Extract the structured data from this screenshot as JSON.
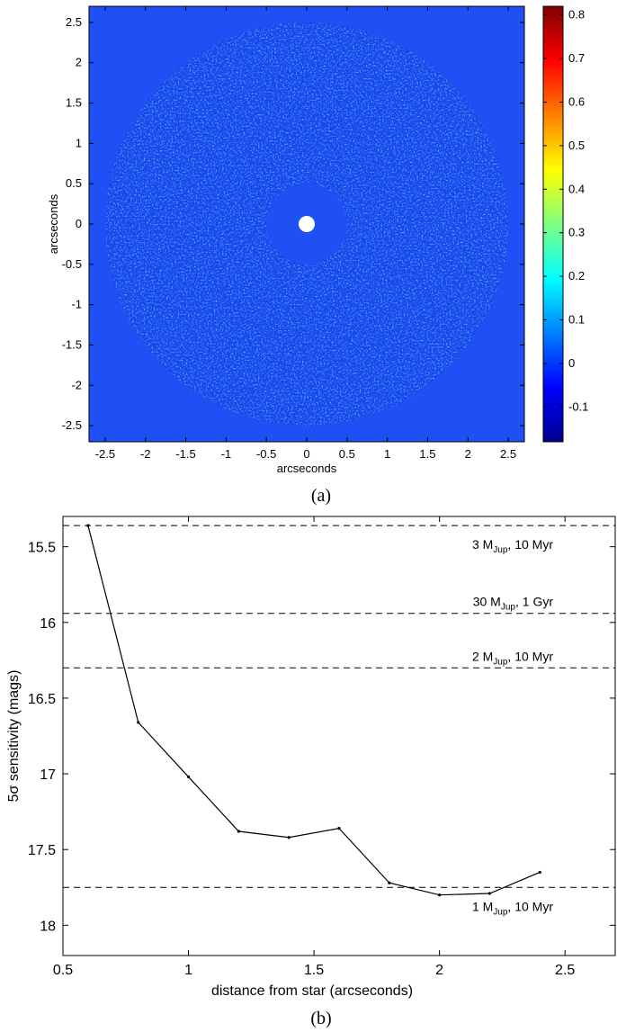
{
  "panel_a": {
    "caption": "(a)",
    "image_label": "residual noise map (colorbar scale)",
    "xlabel": "arcseconds",
    "ylabel": "arcseconds",
    "xticks": [
      "-2.5",
      "-2",
      "-1.5",
      "-1",
      "-0.5",
      "0",
      "0.5",
      "1",
      "1.5",
      "2",
      "2.5"
    ],
    "yticks": [
      "2.5",
      "2",
      "1.5",
      "1",
      "0.5",
      "0",
      "-0.5",
      "-1",
      "-1.5",
      "-2",
      "-2.5"
    ],
    "colorbar_ticks": [
      "0.8",
      "0.7",
      "0.6",
      "0.5",
      "0.4",
      "0.3",
      "0.2",
      "0.1",
      "0",
      "-0.1"
    ],
    "background_color": "#1e50f5",
    "colors": {
      "jet_low": "#00008f",
      "jet_mid": "#00ffff",
      "jet_high": "#800000"
    }
  },
  "panel_b": {
    "caption": "(b)",
    "xticks": [
      "0.5",
      "1",
      "1.5",
      "2",
      "2.5"
    ],
    "yticks": [
      "15.5",
      "16",
      "16.5",
      "17",
      "17.5",
      "18"
    ],
    "reference_lines": [
      {
        "mass": "3",
        "age": "10 Myr",
        "value": 15.36
      },
      {
        "mass": "30",
        "age": "1 Gyr",
        "value": 15.94
      },
      {
        "mass": "2",
        "age": "10 Myr",
        "value": 16.3
      },
      {
        "mass": "1",
        "age": "10 Myr",
        "value": 17.75
      }
    ],
    "mass_prefix": "M",
    "mass_subscript": "Jup"
  },
  "chart_data": [
    {
      "type": "heatmap",
      "title": "",
      "xlabel": "arcseconds",
      "ylabel": "arcseconds",
      "xlim": [
        -2.7,
        2.7
      ],
      "ylim": [
        -2.7,
        2.7
      ],
      "colorbar_range": [
        -0.18,
        0.82
      ],
      "colormap": "jet",
      "description_values": {
        "inner_mask_radius": 0.5,
        "outer_radius": 2.5
      }
    },
    {
      "type": "line",
      "title": "",
      "xlabel": "distance from star (arcseconds)",
      "ylabel": "5σ sensitivity (mags)",
      "xlim": [
        0.5,
        2.7
      ],
      "ylim": [
        15.3,
        18.2
      ],
      "y_inverted": true,
      "x": [
        0.6,
        0.8,
        1.0,
        1.2,
        1.4,
        1.6,
        1.8,
        2.0,
        2.2,
        2.4
      ],
      "y": [
        15.36,
        16.66,
        17.02,
        17.38,
        17.42,
        17.36,
        17.72,
        17.8,
        17.79,
        17.65
      ]
    }
  ]
}
